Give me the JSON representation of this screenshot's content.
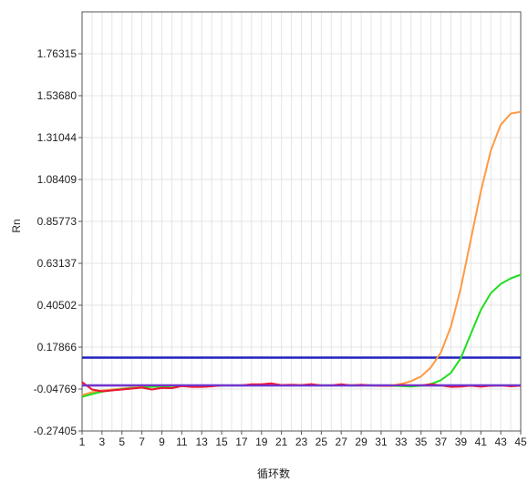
{
  "chart_data": {
    "type": "line",
    "title": "",
    "xlabel": "循环数",
    "ylabel": "Rn",
    "grid": true,
    "legend": "none",
    "x_ticks": [
      1,
      3,
      5,
      7,
      9,
      11,
      13,
      15,
      17,
      19,
      21,
      23,
      25,
      27,
      29,
      31,
      33,
      35,
      37,
      39,
      41,
      43,
      45
    ],
    "y_ticks": [
      "-0.27405",
      "-0.04769",
      "0.17866",
      "0.40502",
      "0.63137",
      "0.85773",
      "1.08409",
      "1.31044",
      "1.53680",
      "1.76315"
    ],
    "xlim": [
      1,
      45
    ],
    "ylim": [
      -0.27405,
      1.98951
    ],
    "thresholds": [
      {
        "value": 0.1219,
        "color": "#2222bb"
      },
      {
        "value": -0.0283,
        "color": "#2222bb"
      }
    ],
    "series": [
      {
        "color": "#ff9a44",
        "x": [
          1,
          2,
          3,
          4,
          5,
          6,
          7,
          8,
          9,
          10,
          11,
          12,
          13,
          14,
          15,
          16,
          17,
          18,
          19,
          20,
          21,
          22,
          23,
          24,
          25,
          26,
          27,
          28,
          29,
          30,
          31,
          32,
          33,
          34,
          35,
          36,
          37,
          38,
          39,
          40,
          41,
          42,
          43,
          44,
          45
        ],
        "values": [
          -0.08,
          -0.065,
          -0.055,
          -0.05,
          -0.045,
          -0.04,
          -0.037,
          -0.035,
          -0.033,
          -0.032,
          -0.031,
          -0.03,
          -0.029,
          -0.028,
          -0.028,
          -0.028,
          -0.028,
          -0.028,
          -0.028,
          -0.028,
          -0.028,
          -0.028,
          -0.028,
          -0.028,
          -0.028,
          -0.028,
          -0.028,
          -0.028,
          -0.028,
          -0.028,
          -0.028,
          -0.028,
          -0.02,
          -0.005,
          0.02,
          0.07,
          0.15,
          0.29,
          0.5,
          0.76,
          1.02,
          1.24,
          1.38,
          1.44,
          1.45
        ]
      },
      {
        "color": "#22dd22",
        "x": [
          1,
          2,
          3,
          4,
          5,
          6,
          7,
          8,
          9,
          10,
          11,
          12,
          13,
          14,
          15,
          16,
          17,
          18,
          19,
          20,
          21,
          22,
          23,
          24,
          25,
          26,
          27,
          28,
          29,
          30,
          31,
          32,
          33,
          34,
          35,
          36,
          37,
          38,
          39,
          40,
          41,
          42,
          43,
          44,
          45
        ],
        "values": [
          -0.09,
          -0.075,
          -0.062,
          -0.054,
          -0.048,
          -0.043,
          -0.039,
          -0.036,
          -0.034,
          -0.032,
          -0.031,
          -0.03,
          -0.029,
          -0.029,
          -0.028,
          -0.028,
          -0.028,
          -0.028,
          -0.028,
          -0.028,
          -0.028,
          -0.028,
          -0.028,
          -0.028,
          -0.028,
          -0.028,
          -0.028,
          -0.028,
          -0.028,
          -0.028,
          -0.029,
          -0.03,
          -0.032,
          -0.034,
          -0.03,
          -0.02,
          0.0,
          0.04,
          0.12,
          0.25,
          0.38,
          0.47,
          0.52,
          0.55,
          0.57
        ]
      },
      {
        "color": "#ee1133",
        "x": [
          1,
          2,
          3,
          4,
          5,
          6,
          7,
          8,
          9,
          10,
          11,
          12,
          13,
          14,
          15,
          16,
          17,
          18,
          19,
          20,
          21,
          22,
          23,
          24,
          25,
          26,
          27,
          28,
          29,
          30,
          31,
          32,
          33,
          34,
          35,
          36,
          37,
          38,
          39,
          40,
          41,
          42,
          43,
          44,
          45
        ],
        "values": [
          -0.01,
          -0.05,
          -0.06,
          -0.055,
          -0.05,
          -0.045,
          -0.04,
          -0.05,
          -0.042,
          -0.043,
          -0.032,
          -0.036,
          -0.036,
          -0.033,
          -0.028,
          -0.028,
          -0.028,
          -0.022,
          -0.022,
          -0.017,
          -0.026,
          -0.024,
          -0.026,
          -0.021,
          -0.028,
          -0.028,
          -0.022,
          -0.028,
          -0.024,
          -0.028,
          -0.03,
          -0.03,
          -0.025,
          -0.028,
          -0.028,
          -0.022,
          -0.028,
          -0.036,
          -0.034,
          -0.03,
          -0.035,
          -0.03,
          -0.028,
          -0.033,
          -0.03
        ]
      },
      {
        "color": "#7733cc",
        "x": [
          1,
          2,
          3,
          4,
          5,
          6,
          7,
          8,
          9,
          10,
          11,
          12,
          13,
          14,
          15,
          16,
          17,
          18,
          19,
          20,
          21,
          22,
          23,
          24,
          25,
          26,
          27,
          28,
          29,
          30,
          31,
          32,
          33,
          34,
          35,
          36,
          37,
          38,
          39,
          40,
          41,
          42,
          43,
          44,
          45
        ],
        "values": [
          -0.028,
          -0.028,
          -0.028,
          -0.028,
          -0.028,
          -0.028,
          -0.028,
          -0.028,
          -0.028,
          -0.028,
          -0.028,
          -0.028,
          -0.028,
          -0.028,
          -0.028,
          -0.028,
          -0.028,
          -0.028,
          -0.028,
          -0.028,
          -0.028,
          -0.028,
          -0.028,
          -0.028,
          -0.028,
          -0.028,
          -0.028,
          -0.028,
          -0.028,
          -0.028,
          -0.028,
          -0.028,
          -0.028,
          -0.028,
          -0.028,
          -0.028,
          -0.028,
          -0.028,
          -0.028,
          -0.028,
          -0.028,
          -0.028,
          -0.028,
          -0.028,
          -0.028
        ]
      }
    ]
  }
}
